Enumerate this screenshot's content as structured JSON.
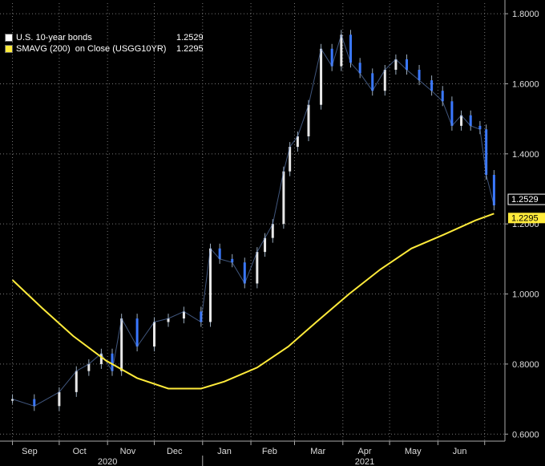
{
  "chart_data": {
    "type": "line",
    "title": "",
    "xlabel": "",
    "ylabel": "",
    "ylim": [
      0.58,
      1.83
    ],
    "y_ticks": [
      "0.6000",
      "0.8000",
      "1.0000",
      "1.2000",
      "1.4000",
      "1.6000",
      "1.8000"
    ],
    "y_tick_values": [
      0.6,
      0.8,
      1.0,
      1.2,
      1.4,
      1.6,
      1.8
    ],
    "x_months": [
      "Sep",
      "Oct",
      "Nov",
      "Dec",
      "Jan",
      "Feb",
      "Mar",
      "Apr",
      "May",
      "Jun"
    ],
    "x_years": [
      "2020",
      "2021"
    ],
    "grid": true,
    "legend_placement": "top-left",
    "series": [
      {
        "name": "U.S. 10-year bonds",
        "last_value": "1.2529",
        "color": "#ffffff",
        "style": "candlestick",
        "x": [
          "2020-09-01",
          "2020-09-15",
          "2020-10-01",
          "2020-10-12",
          "2020-10-20",
          "2020-10-28",
          "2020-11-04",
          "2020-11-10",
          "2020-11-20",
          "2020-12-01",
          "2020-12-10",
          "2020-12-20",
          "2020-12-31",
          "2021-01-06",
          "2021-01-12",
          "2021-01-20",
          "2021-01-28",
          "2021-02-05",
          "2021-02-10",
          "2021-02-15",
          "2021-02-22",
          "2021-02-26",
          "2021-03-03",
          "2021-03-10",
          "2021-03-18",
          "2021-03-25",
          "2021-03-31",
          "2021-04-06",
          "2021-04-12",
          "2021-04-20",
          "2021-04-28",
          "2021-05-05",
          "2021-05-12",
          "2021-05-20",
          "2021-05-28",
          "2021-06-04",
          "2021-06-10",
          "2021-06-16",
          "2021-06-22",
          "2021-06-28",
          "2021-07-02",
          "2021-07-07"
        ],
        "values": [
          0.7,
          0.68,
          0.72,
          0.78,
          0.8,
          0.83,
          0.78,
          0.93,
          0.85,
          0.92,
          0.93,
          0.95,
          0.92,
          1.13,
          1.1,
          1.09,
          1.03,
          1.12,
          1.16,
          1.2,
          1.35,
          1.42,
          1.45,
          1.54,
          1.7,
          1.65,
          1.74,
          1.66,
          1.63,
          1.58,
          1.64,
          1.67,
          1.64,
          1.61,
          1.58,
          1.55,
          1.48,
          1.51,
          1.48,
          1.47,
          1.34,
          1.2529
        ]
      },
      {
        "name": "SMAVG (200)  on Close (USGG10YR)",
        "last_value": "1.2295",
        "color": "#ffeb3b",
        "style": "line",
        "x": [
          "2020-09-01",
          "2020-09-20",
          "2020-10-10",
          "2020-10-31",
          "2020-11-20",
          "2020-12-10",
          "2020-12-31",
          "2021-01-15",
          "2021-02-05",
          "2021-02-25",
          "2021-03-15",
          "2021-04-05",
          "2021-04-25",
          "2021-05-15",
          "2021-06-05",
          "2021-06-25",
          "2021-07-07"
        ],
        "values": [
          1.04,
          0.96,
          0.88,
          0.81,
          0.76,
          0.73,
          0.73,
          0.75,
          0.79,
          0.85,
          0.92,
          1.0,
          1.07,
          1.13,
          1.17,
          1.21,
          1.2295
        ]
      }
    ]
  }
}
